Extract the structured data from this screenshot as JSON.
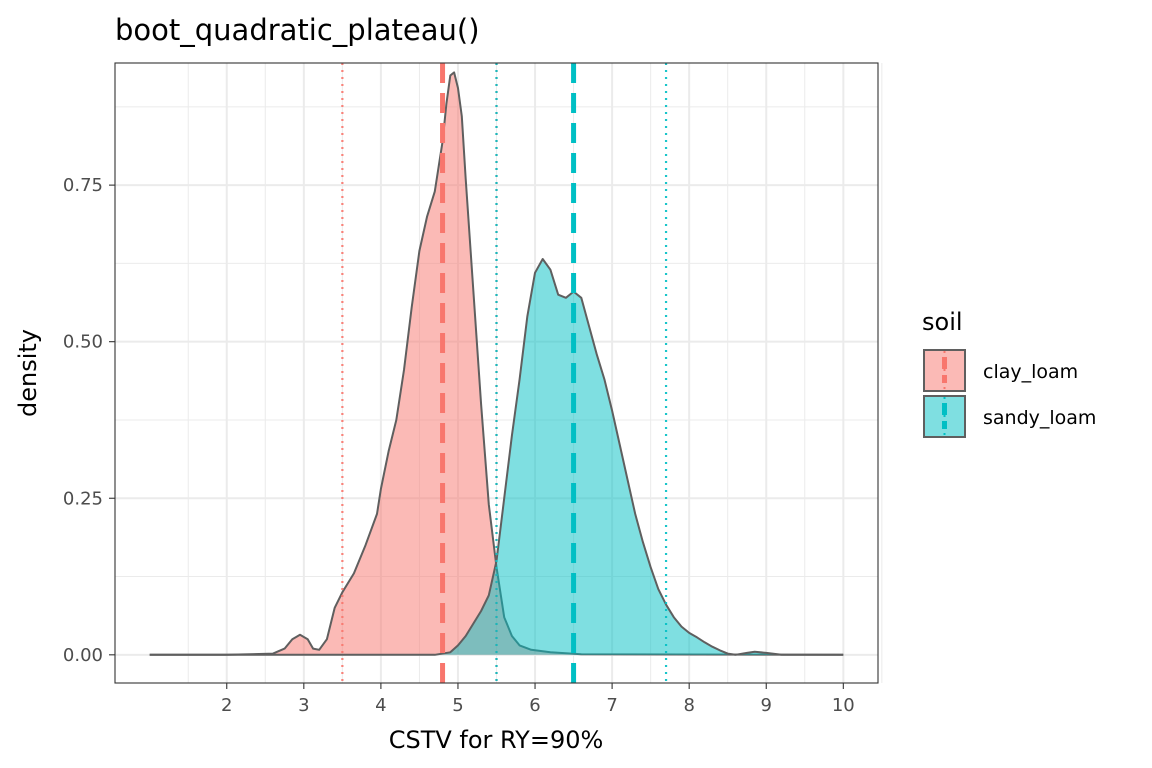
{
  "chart_data": {
    "type": "area",
    "title": "boot_quadratic_plateau()",
    "xlabel": "CSTV for RY=90%",
    "ylabel": "density",
    "xlim": [
      0.55,
      10.45
    ],
    "ylim": [
      -0.045,
      0.945
    ],
    "x_ticks": [
      2,
      3,
      4,
      5,
      6,
      7,
      8,
      9,
      10
    ],
    "x_tick_labels": [
      "2",
      "3",
      "4",
      "5",
      "6",
      "7",
      "8",
      "9",
      "10"
    ],
    "y_ticks": [
      0.0,
      0.25,
      0.5,
      0.75
    ],
    "y_tick_labels": [
      "0.00",
      "0.25",
      "0.50",
      "0.75"
    ],
    "grid": true,
    "legend": {
      "title": "soil",
      "position": "right"
    },
    "series": [
      {
        "name": "clay_loam",
        "fill": "#F8766D",
        "fill_opacity": 0.5,
        "median": 4.8,
        "ci": [
          3.5,
          5.5
        ],
        "points": [
          [
            1.0,
            0.0
          ],
          [
            2.0,
            0.0
          ],
          [
            2.6,
            0.002
          ],
          [
            2.75,
            0.01
          ],
          [
            2.85,
            0.025
          ],
          [
            2.95,
            0.032
          ],
          [
            3.05,
            0.025
          ],
          [
            3.12,
            0.01
          ],
          [
            3.2,
            0.008
          ],
          [
            3.3,
            0.025
          ],
          [
            3.4,
            0.075
          ],
          [
            3.5,
            0.1
          ],
          [
            3.65,
            0.13
          ],
          [
            3.8,
            0.175
          ],
          [
            3.95,
            0.225
          ],
          [
            4.0,
            0.265
          ],
          [
            4.1,
            0.325
          ],
          [
            4.2,
            0.375
          ],
          [
            4.3,
            0.455
          ],
          [
            4.4,
            0.555
          ],
          [
            4.5,
            0.645
          ],
          [
            4.6,
            0.7
          ],
          [
            4.7,
            0.74
          ],
          [
            4.75,
            0.78
          ],
          [
            4.8,
            0.82
          ],
          [
            4.85,
            0.88
          ],
          [
            4.9,
            0.925
          ],
          [
            4.95,
            0.93
          ],
          [
            5.0,
            0.905
          ],
          [
            5.05,
            0.86
          ],
          [
            5.1,
            0.76
          ],
          [
            5.2,
            0.58
          ],
          [
            5.3,
            0.4
          ],
          [
            5.4,
            0.24
          ],
          [
            5.5,
            0.14
          ],
          [
            5.6,
            0.06
          ],
          [
            5.7,
            0.03
          ],
          [
            5.8,
            0.015
          ],
          [
            5.95,
            0.008
          ],
          [
            6.2,
            0.004
          ],
          [
            6.6,
            0.001
          ],
          [
            10.0,
            0.0
          ]
        ]
      },
      {
        "name": "sandy_loam",
        "fill": "#00BFC4",
        "fill_opacity": 0.5,
        "median": 6.5,
        "ci": [
          5.5,
          7.7
        ],
        "points": [
          [
            1.0,
            0.0
          ],
          [
            4.7,
            0.0
          ],
          [
            4.9,
            0.004
          ],
          [
            5.0,
            0.015
          ],
          [
            5.1,
            0.03
          ],
          [
            5.2,
            0.05
          ],
          [
            5.3,
            0.07
          ],
          [
            5.4,
            0.095
          ],
          [
            5.5,
            0.15
          ],
          [
            5.6,
            0.25
          ],
          [
            5.7,
            0.35
          ],
          [
            5.8,
            0.44
          ],
          [
            5.9,
            0.54
          ],
          [
            6.0,
            0.61
          ],
          [
            6.1,
            0.632
          ],
          [
            6.2,
            0.615
          ],
          [
            6.3,
            0.575
          ],
          [
            6.4,
            0.57
          ],
          [
            6.5,
            0.58
          ],
          [
            6.6,
            0.57
          ],
          [
            6.7,
            0.525
          ],
          [
            6.8,
            0.48
          ],
          [
            6.9,
            0.44
          ],
          [
            7.0,
            0.39
          ],
          [
            7.1,
            0.335
          ],
          [
            7.2,
            0.28
          ],
          [
            7.3,
            0.225
          ],
          [
            7.4,
            0.18
          ],
          [
            7.5,
            0.14
          ],
          [
            7.6,
            0.105
          ],
          [
            7.7,
            0.08
          ],
          [
            7.8,
            0.06
          ],
          [
            7.9,
            0.045
          ],
          [
            8.0,
            0.035
          ],
          [
            8.1,
            0.028
          ],
          [
            8.2,
            0.02
          ],
          [
            8.3,
            0.013
          ],
          [
            8.4,
            0.007
          ],
          [
            8.5,
            0.002
          ],
          [
            8.6,
            0.0
          ],
          [
            8.75,
            0.003
          ],
          [
            8.85,
            0.005
          ],
          [
            9.0,
            0.003
          ],
          [
            9.2,
            0.0
          ],
          [
            10.0,
            0.0
          ]
        ]
      }
    ]
  }
}
